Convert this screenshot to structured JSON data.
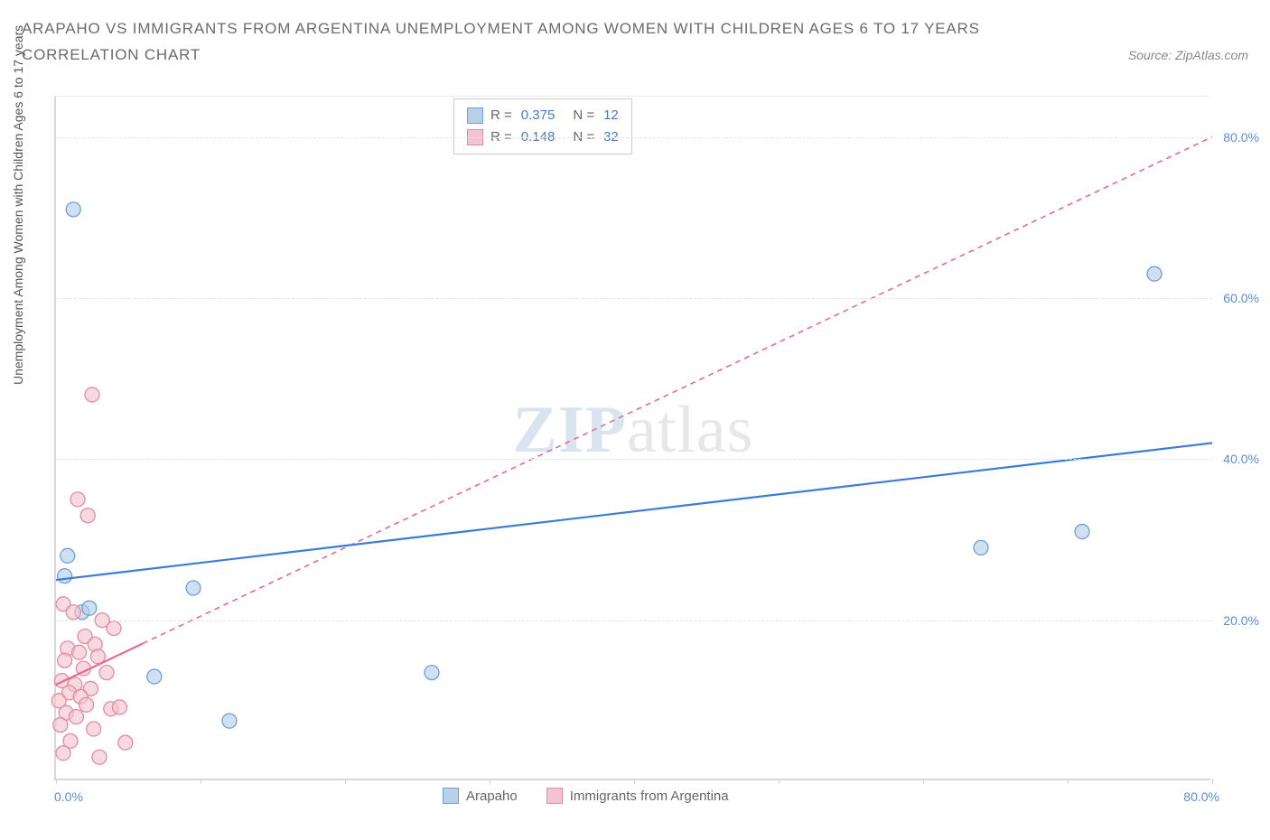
{
  "title_line1": "ARAPAHO VS IMMIGRANTS FROM ARGENTINA UNEMPLOYMENT AMONG WOMEN WITH CHILDREN AGES 6 TO 17 YEARS",
  "title_line2": "CORRELATION CHART",
  "source_text": "Source: ZipAtlas.com",
  "ylabel": "Unemployment Among Women with Children Ages 6 to 17 years",
  "watermark_zip": "ZIP",
  "watermark_atlas": "atlas",
  "chart": {
    "type": "scatter",
    "xlim": [
      0,
      80
    ],
    "ylim": [
      0,
      85
    ],
    "ytick_values": [
      20,
      40,
      60,
      80
    ],
    "ytick_labels": [
      "20.0%",
      "40.0%",
      "60.0%",
      "80.0%"
    ],
    "xtick_left": "0.0%",
    "xtick_right": "80.0%",
    "xtick_marks": [
      0,
      10,
      20,
      30,
      40,
      50,
      60,
      70,
      80
    ],
    "background_color": "#ffffff",
    "grid_color": "#e5e5e5",
    "axis_color": "#d8d8d8",
    "tick_label_color": "#5a8dd6",
    "series": [
      {
        "name": "Arapaho",
        "point_fill": "#b8d0ea",
        "point_stroke": "#6f9fd8",
        "line_color": "#3d7cd6",
        "line_dash": "none",
        "r_value": "0.375",
        "n_value": "12",
        "trend": {
          "x1": 0,
          "y1": 25,
          "x2": 80,
          "y2": 42,
          "solid_until_x": 80
        },
        "points": [
          {
            "x": 1.2,
            "y": 71
          },
          {
            "x": 0.8,
            "y": 28
          },
          {
            "x": 0.6,
            "y": 25.5
          },
          {
            "x": 1.8,
            "y": 21
          },
          {
            "x": 2.3,
            "y": 21.5
          },
          {
            "x": 9.5,
            "y": 24
          },
          {
            "x": 6.8,
            "y": 13
          },
          {
            "x": 12,
            "y": 7.5
          },
          {
            "x": 26,
            "y": 13.5
          },
          {
            "x": 64,
            "y": 29
          },
          {
            "x": 71,
            "y": 31
          },
          {
            "x": 76,
            "y": 63
          }
        ]
      },
      {
        "name": "Immigrants from Argentina",
        "point_fill": "#f3c4d0",
        "point_stroke": "#e58aa5",
        "line_color": "#e86b8f",
        "line_dash": "6 5",
        "r_value": "0.148",
        "n_value": "32",
        "trend": {
          "x1": 0,
          "y1": 12,
          "x2": 80,
          "y2": 80,
          "solid_until_x": 6
        },
        "points": [
          {
            "x": 2.5,
            "y": 48
          },
          {
            "x": 1.5,
            "y": 35
          },
          {
            "x": 2.2,
            "y": 33
          },
          {
            "x": 0.5,
            "y": 22
          },
          {
            "x": 1.2,
            "y": 21
          },
          {
            "x": 3.2,
            "y": 20
          },
          {
            "x": 4.0,
            "y": 19
          },
          {
            "x": 2.0,
            "y": 18
          },
          {
            "x": 2.7,
            "y": 17
          },
          {
            "x": 0.8,
            "y": 16.5
          },
          {
            "x": 1.6,
            "y": 16
          },
          {
            "x": 2.9,
            "y": 15.5
          },
          {
            "x": 0.6,
            "y": 15
          },
          {
            "x": 1.9,
            "y": 14
          },
          {
            "x": 3.5,
            "y": 13.5
          },
          {
            "x": 0.4,
            "y": 12.5
          },
          {
            "x": 1.3,
            "y": 12
          },
          {
            "x": 2.4,
            "y": 11.5
          },
          {
            "x": 0.9,
            "y": 11
          },
          {
            "x": 1.7,
            "y": 10.5
          },
          {
            "x": 0.2,
            "y": 10
          },
          {
            "x": 2.1,
            "y": 9.5
          },
          {
            "x": 3.8,
            "y": 9
          },
          {
            "x": 0.7,
            "y": 8.5
          },
          {
            "x": 1.4,
            "y": 8
          },
          {
            "x": 4.4,
            "y": 9.2
          },
          {
            "x": 0.3,
            "y": 7
          },
          {
            "x": 2.6,
            "y": 6.5
          },
          {
            "x": 1.0,
            "y": 5
          },
          {
            "x": 4.8,
            "y": 4.8
          },
          {
            "x": 0.5,
            "y": 3.5
          },
          {
            "x": 3.0,
            "y": 3
          }
        ]
      }
    ],
    "stats_box": {
      "r_label": "R =",
      "n_label": "N ="
    },
    "point_radius": 8,
    "point_opacity": 0.65,
    "line_width": 2.2
  }
}
